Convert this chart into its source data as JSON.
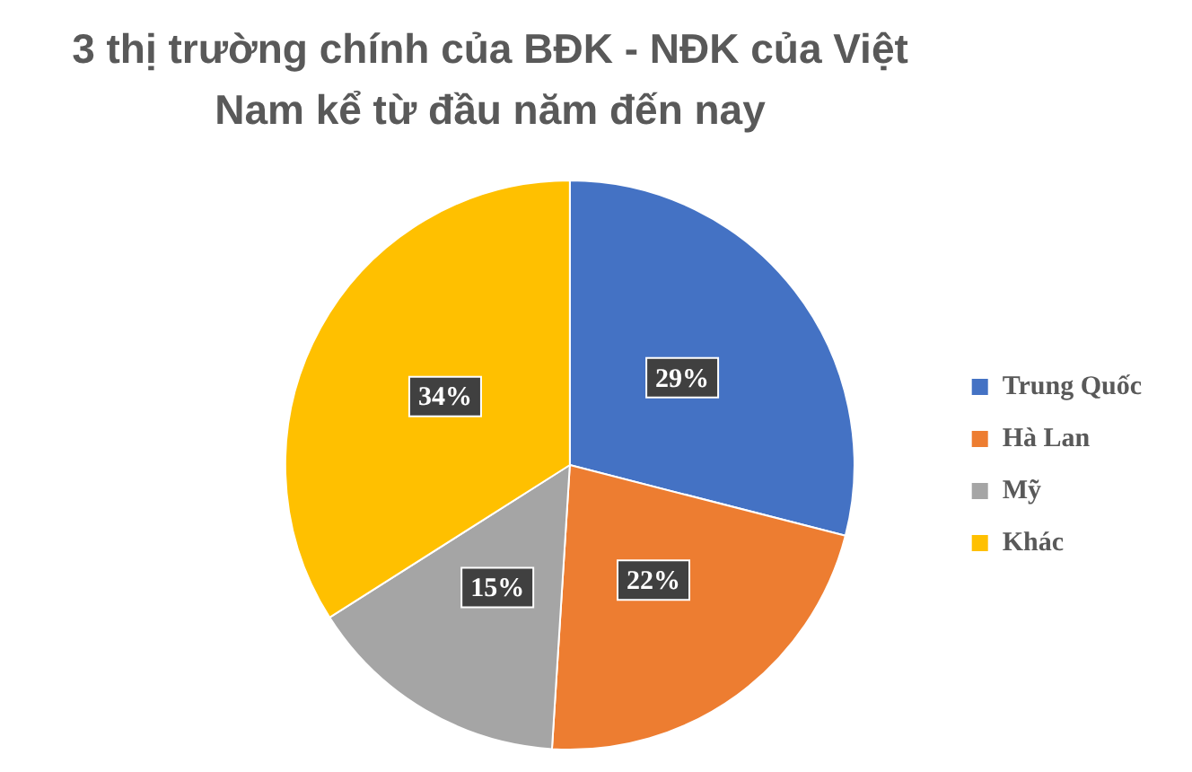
{
  "chart_data": {
    "type": "pie",
    "title": "3 thị trường chính của BĐK - NĐK của Việt Nam kể từ đầu năm đến nay",
    "categories": [
      "Trung Quốc",
      "Hà Lan",
      "Mỹ",
      "Khác"
    ],
    "values": [
      29,
      22,
      15,
      34
    ],
    "colors": [
      "#4472c4",
      "#ed7d31",
      "#a5a5a5",
      "#ffc000"
    ],
    "value_labels": [
      "29%",
      "22%",
      "15%",
      "34%"
    ],
    "legend": "right"
  }
}
